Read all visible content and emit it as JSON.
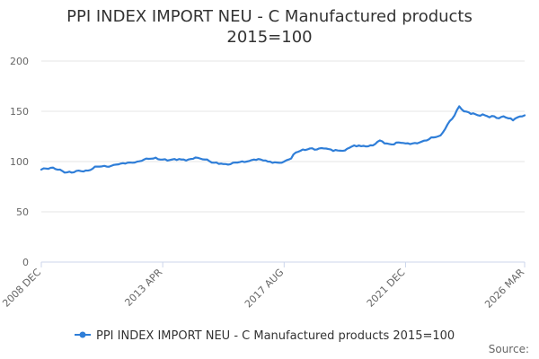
{
  "chart_data": {
    "type": "line",
    "title_lines": [
      "PPI INDEX IMPORT NEU - C Manufactured products",
      "2015=100"
    ],
    "xlabel": "",
    "ylabel": "",
    "ylim": [
      0,
      200
    ],
    "yticks": [
      "0",
      "50",
      "100",
      "150",
      "200"
    ],
    "xticks": [
      {
        "label": "2008 DEC",
        "index": 0
      },
      {
        "label": "2013 APR",
        "index": 52
      },
      {
        "label": "2017 AUG",
        "index": 104
      },
      {
        "label": "2021 DEC",
        "index": 156
      },
      {
        "label": "2026 MAR",
        "index": 207
      }
    ],
    "x_start": "2008 DEC",
    "x_end": "2026 MAR",
    "grid": true,
    "legend_position": "bottom-center",
    "series": [
      {
        "name": "PPI INDEX IMPORT NEU - C Manufactured products 2015=100",
        "color": "#2f7ed8",
        "anchors": [
          [
            0,
            92
          ],
          [
            5,
            94
          ],
          [
            8,
            92
          ],
          [
            10,
            89
          ],
          [
            13,
            89
          ],
          [
            16,
            91
          ],
          [
            20,
            91
          ],
          [
            24,
            95
          ],
          [
            28,
            95
          ],
          [
            32,
            97
          ],
          [
            36,
            98
          ],
          [
            40,
            99
          ],
          [
            44,
            102
          ],
          [
            48,
            103
          ],
          [
            52,
            102
          ],
          [
            56,
            102
          ],
          [
            60,
            102
          ],
          [
            62,
            101
          ],
          [
            66,
            104
          ],
          [
            70,
            102
          ],
          [
            73,
            99
          ],
          [
            77,
            98
          ],
          [
            80,
            97
          ],
          [
            84,
            99
          ],
          [
            88,
            100
          ],
          [
            91,
            102
          ],
          [
            94,
            102
          ],
          [
            97,
            100
          ],
          [
            101,
            99
          ],
          [
            104,
            100
          ],
          [
            107,
            103
          ],
          [
            109,
            109
          ],
          [
            112,
            112
          ],
          [
            115,
            113
          ],
          [
            118,
            112
          ],
          [
            121,
            113
          ],
          [
            124,
            112
          ],
          [
            127,
            111
          ],
          [
            130,
            111
          ],
          [
            133,
            115
          ],
          [
            136,
            116
          ],
          [
            139,
            115
          ],
          [
            142,
            116
          ],
          [
            145,
            121
          ],
          [
            148,
            118
          ],
          [
            150,
            117
          ],
          [
            153,
            119
          ],
          [
            156,
            118
          ],
          [
            159,
            118
          ],
          [
            162,
            119
          ],
          [
            165,
            121
          ],
          [
            168,
            124
          ],
          [
            171,
            126
          ],
          [
            174,
            137
          ],
          [
            177,
            146
          ],
          [
            179,
            155
          ],
          [
            181,
            150
          ],
          [
            183,
            149
          ],
          [
            185,
            148
          ],
          [
            187,
            146
          ],
          [
            190,
            146
          ],
          [
            192,
            144
          ],
          [
            194,
            145
          ],
          [
            196,
            143
          ],
          [
            198,
            145
          ],
          [
            200,
            143
          ],
          [
            202,
            141
          ],
          [
            204,
            144
          ],
          [
            206,
            145
          ],
          [
            207,
            146
          ]
        ]
      }
    ]
  },
  "legend": {
    "label": "PPI INDEX IMPORT NEU - C Manufactured products 2015=100"
  },
  "source_label": "Source:"
}
